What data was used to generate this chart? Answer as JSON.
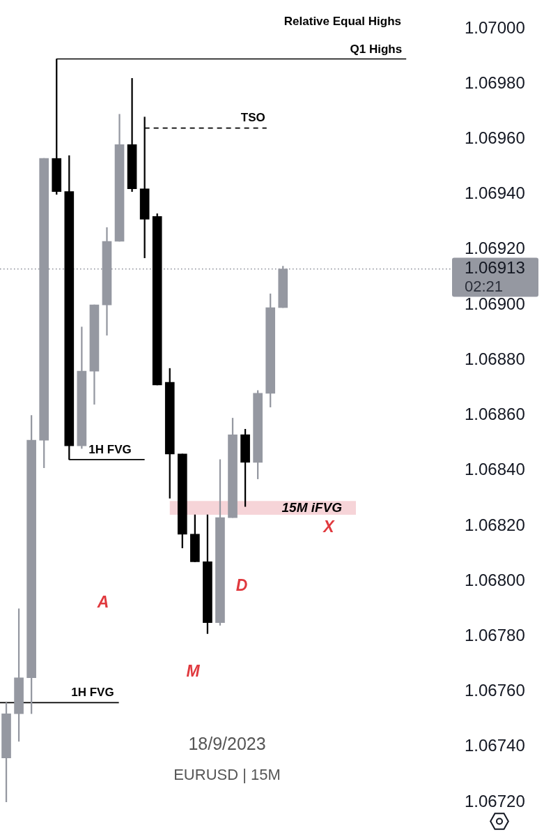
{
  "chart_data": {
    "type": "candlestick",
    "categories": [
      null,
      null,
      null,
      null,
      null,
      null,
      null,
      null,
      null,
      null,
      null,
      null,
      null,
      null,
      null,
      null,
      null,
      null,
      null,
      null,
      null,
      null,
      null,
      null,
      null,
      null,
      null,
      null,
      null,
      null,
      null,
      null,
      null,
      null,
      null,
      null
    ],
    "ohlc": [
      [
        1.06736,
        1.06756,
        1.0672,
        1.06752
      ],
      [
        1.06752,
        1.0679,
        1.06742,
        1.06765
      ],
      [
        1.06765,
        1.0686,
        1.06752,
        1.06851
      ],
      [
        1.06851,
        1.06953,
        1.06841,
        1.06953
      ],
      [
        1.06953,
        1.06989,
        1.0694,
        1.06941
      ],
      [
        1.06941,
        1.06954,
        1.06844,
        1.06849
      ],
      [
        1.06849,
        1.06892,
        1.06848,
        1.06876
      ],
      [
        1.06876,
        1.069,
        1.06864,
        1.069
      ],
      [
        1.069,
        1.06928,
        1.06889,
        1.06923
      ],
      [
        1.06923,
        1.06969,
        1.06923,
        1.06958
      ],
      [
        1.06958,
        1.06982,
        1.06941,
        1.06942
      ],
      [
        1.06942,
        1.06968,
        1.06917,
        1.06931
      ],
      [
        1.06932,
        1.06933,
        1.06871,
        1.06871
      ],
      [
        1.06872,
        1.06877,
        1.0683,
        1.06846
      ],
      [
        1.06846,
        1.06846,
        1.06812,
        1.06817
      ],
      [
        1.06817,
        1.06824,
        1.06807,
        1.06807
      ],
      [
        1.06807,
        1.06824,
        1.06781,
        1.06785
      ],
      [
        1.06785,
        1.06844,
        1.06784,
        1.06823
      ],
      [
        1.06823,
        1.06859,
        1.06823,
        1.06853
      ],
      [
        1.06853,
        1.06855,
        1.06827,
        1.06843
      ],
      [
        1.06843,
        1.06869,
        1.06837,
        1.06868
      ],
      [
        1.06868,
        1.06904,
        1.06863,
        1.06899
      ],
      [
        1.06899,
        1.06914,
        1.06899,
        1.06913
      ],
      null,
      null,
      null,
      null,
      null,
      null,
      null,
      null,
      null,
      null,
      null,
      null,
      null
    ],
    "colors": [
      "#9598a1",
      "#9598a1",
      "#9598a1",
      "#9598a1",
      "#000000",
      "#000000",
      "#9598a1",
      "#9598a1",
      "#9598a1",
      "#9598a1",
      "#000000",
      "#000000",
      "#000000",
      "#000000",
      "#000000",
      "#000000",
      "#000000",
      "#9598a1",
      "#9598a1",
      "#000000",
      "#9598a1",
      "#9598a1",
      "#9598a1",
      null,
      null,
      null,
      null,
      null,
      null,
      null,
      null,
      null,
      null,
      null,
      null,
      null
    ],
    "ylim": [
      1.0672,
      1.07
    ],
    "yticks": [
      {
        "value": 1.0672,
        "label": "1.06720"
      },
      {
        "value": 1.0674,
        "label": "1.06740"
      },
      {
        "value": 1.0676,
        "label": "1.06760"
      },
      {
        "value": 1.0678,
        "label": "1.06780"
      },
      {
        "value": 1.068,
        "label": "1.06800"
      },
      {
        "value": 1.0682,
        "label": "1.06820"
      },
      {
        "value": 1.0684,
        "label": "1.06840"
      },
      {
        "value": 1.0686,
        "label": "1.06860"
      },
      {
        "value": 1.0688,
        "label": "1.06880"
      },
      {
        "value": 1.069,
        "label": "1.06900"
      },
      {
        "value": 1.0692,
        "label": "1.06920"
      },
      {
        "value": 1.0694,
        "label": "1.06940"
      },
      {
        "value": 1.0696,
        "label": "1.06960"
      },
      {
        "value": 1.0698,
        "label": "1.06980"
      },
      {
        "value": 1.07,
        "label": "1.07000"
      }
    ],
    "tick_labels": "y",
    "ref_lines": [
      {
        "axis": "y",
        "value": 1.06989,
        "label": "Q1 Highs",
        "color": "#000000"
      },
      {
        "axis": "y",
        "value": 1.06964,
        "label": "TSO",
        "color": "#000000",
        "line_style": "dashed"
      },
      {
        "axis": "y",
        "value": 1.06844,
        "label": "1H FVG",
        "color": "#000000"
      },
      {
        "axis": "y",
        "value": 1.06756,
        "label": "1H FVG",
        "color": "#000000"
      },
      {
        "axis": "y",
        "value": 1.06913,
        "label": "1.06913",
        "color": "#9598a1",
        "line_style": "dotted"
      }
    ],
    "bands": [
      {
        "axis": "y",
        "from": 1.06824,
        "to": 1.06829,
        "label": "15M iFVG",
        "color": "#f6d4d8"
      }
    ],
    "annotations": [
      "Relative Equal Highs",
      "A",
      "D",
      "M",
      "X",
      "18/9/2023",
      "EURUSD | 15M",
      "02:21"
    ]
  }
}
